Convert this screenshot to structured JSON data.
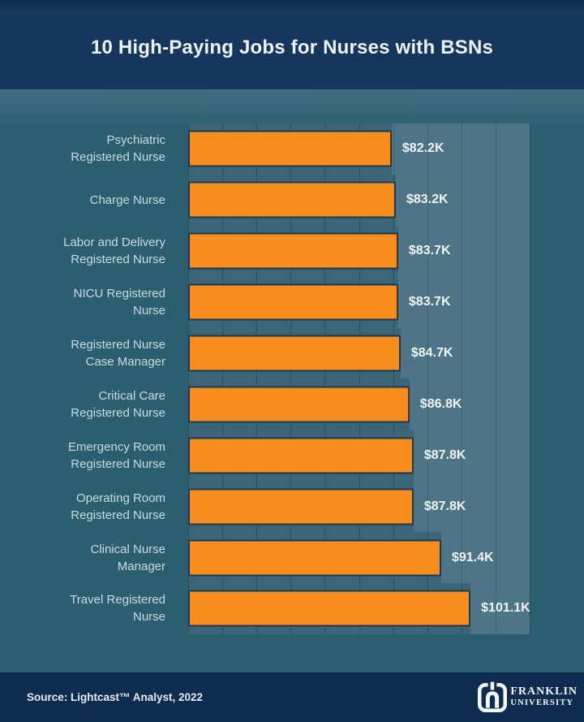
{
  "header": {
    "title": "10 High-Paying Jobs for Nurses with BSNs"
  },
  "chart_data": {
    "type": "bar",
    "orientation": "horizontal",
    "title": "10 High-Paying Jobs for Nurses with BSNs",
    "categories": [
      "Psychiatric\nRegistered Nurse",
      "Charge Nurse",
      "Labor and Delivery\nRegistered Nurse",
      "NICU Registered\nNurse",
      "Registered Nurse\nCase Manager",
      "Critical Care\nRegistered Nurse",
      "Emergency Room\nRegistered Nurse",
      "Operating Room\nRegistered Nurse",
      "Clinical Nurse\nManager",
      "Travel Registered\nNurse"
    ],
    "values": [
      82.2,
      83.2,
      83.7,
      83.7,
      84.7,
      86.8,
      87.8,
      87.8,
      91.4,
      101.1
    ],
    "value_labels": [
      "$82.2K",
      "$83.2K",
      "$83.7K",
      "$83.7K",
      "$84.7K",
      "$86.8K",
      "$87.8K",
      "$87.8K",
      "$91.4K",
      "$101.1K"
    ],
    "unit": "USD thousands per year",
    "bar_width_pct": [
      59.6,
      60.8,
      61.5,
      61.5,
      62.2,
      64.8,
      66.0,
      66.0,
      74.1,
      82.7
    ],
    "bar_color": "#F78C1F",
    "bar_border_color": "#1C3A52",
    "value_label_color": "#EFF5F8",
    "category_label_color": "#C7DCE3",
    "plot_background": "#3A6678",
    "page_background": "#2C5E6F",
    "grid": true,
    "gridline_count": 11,
    "legend": false
  },
  "footer": {
    "source": "Source: Lightcast™ Analyst, 2022",
    "logo": {
      "name": "Franklin University",
      "line1": "FRANKLIN",
      "line2": "UNIVERSITY"
    }
  }
}
